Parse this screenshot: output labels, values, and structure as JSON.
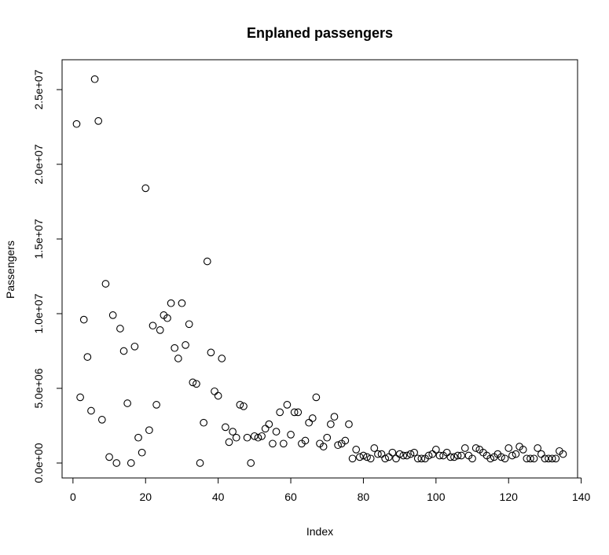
{
  "chart_data": {
    "type": "scatter",
    "title": "Enplaned passengers",
    "xlabel": "Index",
    "ylabel": "Passengers",
    "xlim": [
      -3,
      139
    ],
    "ylim": [
      -1000000,
      27000000
    ],
    "x_ticks": [
      0,
      20,
      40,
      60,
      80,
      100,
      120,
      140
    ],
    "x_tick_labels": [
      "0",
      "20",
      "40",
      "60",
      "80",
      "100",
      "120",
      "140"
    ],
    "y_ticks": [
      0,
      5000000,
      10000000,
      15000000,
      20000000,
      25000000
    ],
    "y_tick_labels": [
      "0.0e+00",
      "5.0e+06",
      "1.0e+07",
      "1.5e+07",
      "2.0e+07",
      "2.5e+07"
    ],
    "grid": false,
    "point_shape": "open-circle",
    "x": [
      1,
      2,
      3,
      4,
      5,
      6,
      7,
      8,
      9,
      10,
      11,
      12,
      13,
      14,
      15,
      16,
      17,
      18,
      19,
      20,
      21,
      22,
      23,
      24,
      25,
      26,
      27,
      28,
      29,
      30,
      31,
      32,
      33,
      34,
      35,
      36,
      37,
      38,
      39,
      40,
      41,
      42,
      43,
      44,
      45,
      46,
      47,
      48,
      49,
      50,
      51,
      52,
      53,
      54,
      55,
      56,
      57,
      58,
      59,
      60,
      61,
      62,
      63,
      64,
      65,
      66,
      67,
      68,
      69,
      70,
      71,
      72,
      73,
      74,
      75,
      76,
      77,
      78,
      79,
      80,
      81,
      82,
      83,
      84,
      85,
      86,
      87,
      88,
      89,
      90,
      91,
      92,
      93,
      94,
      95,
      96,
      97,
      98,
      99,
      100,
      101,
      102,
      103,
      104,
      105,
      106,
      107,
      108,
      109,
      110,
      111,
      112,
      113,
      114,
      115,
      116,
      117,
      118,
      119,
      120,
      121,
      122,
      123,
      124,
      125,
      126,
      127,
      128,
      129,
      130,
      131,
      132,
      133,
      134,
      135
    ],
    "y": [
      22700000,
      4400000,
      9600000,
      7100000,
      3500000,
      25700000,
      22900000,
      2900000,
      12000000,
      400000,
      9900000,
      0,
      9000000,
      7500000,
      4000000,
      0,
      7800000,
      1700000,
      700000,
      18400000,
      2200000,
      9200000,
      3900000,
      8900000,
      9900000,
      9700000,
      10700000,
      7700000,
      7000000,
      10700000,
      7900000,
      9300000,
      5400000,
      5300000,
      0,
      2700000,
      13500000,
      7400000,
      4800000,
      4500000,
      7000000,
      2400000,
      1400000,
      2100000,
      1700000,
      3900000,
      3800000,
      1700000,
      0,
      1800000,
      1700000,
      1800000,
      2300000,
      2600000,
      1300000,
      2100000,
      3400000,
      1300000,
      3900000,
      1900000,
      3400000,
      3400000,
      1300000,
      1500000,
      2700000,
      3000000,
      4400000,
      1300000,
      1100000,
      1700000,
      2600000,
      3100000,
      1200000,
      1300000,
      1500000,
      2600000,
      300000,
      900000,
      400000,
      500000,
      400000,
      300000,
      1000000,
      600000,
      600000,
      300000,
      400000,
      700000,
      300000,
      600000,
      500000,
      500000,
      600000,
      700000,
      300000,
      300000,
      300000,
      500000,
      600000,
      900000,
      500000,
      500000,
      700000,
      400000,
      400000,
      500000,
      500000,
      1000000,
      500000,
      300000,
      1000000,
      900000,
      700000,
      500000,
      300000,
      400000,
      600000,
      400000,
      300000,
      1000000,
      500000,
      600000,
      1100000,
      900000,
      300000,
      300000,
      300000,
      1000000,
      600000,
      300000,
      300000,
      300000,
      300000,
      800000,
      600000
    ]
  }
}
